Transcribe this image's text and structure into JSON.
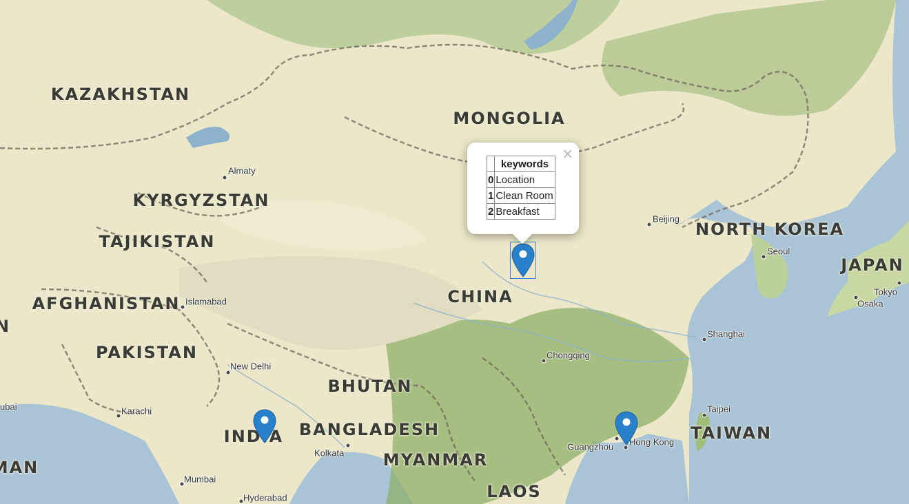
{
  "map": {
    "countries": [
      "KAZAKHSTAN",
      "MONGOLIA",
      "KYRGYZSTAN",
      "TAJIKISTAN",
      "AFGHANISTAN",
      "CHINA",
      "PAKISTAN",
      "NORTH KOREA",
      "JAPAN",
      "BHUTAN",
      "BANGLADESH",
      "MYANMAR",
      "INDIA",
      "TAIWAN",
      "LAOS",
      "N",
      "MAN"
    ],
    "cities": [
      "Almaty",
      "Beijing",
      "Seoul",
      "Tokyo",
      "Osaka",
      "Islamabad",
      "Shanghai",
      "Chongqing",
      "New Delhi",
      "Karachi",
      "Taipei",
      "Guangzhou",
      "Hong Kong",
      "Kolkata",
      "Mumbai",
      "Hyderabad",
      "ubai"
    ]
  },
  "markers": [
    "marker-icon",
    "marker-icon",
    "marker-icon"
  ],
  "popup": {
    "header_index": "",
    "header": "keywords",
    "rows": [
      {
        "index": "0",
        "value": "Location"
      },
      {
        "index": "1",
        "value": "Clean Room"
      },
      {
        "index": "2",
        "value": "Breakfast"
      }
    ],
    "close_label": "×"
  },
  "colors": {
    "water": "#a9c4d6",
    "land": "#e9e6c8",
    "forest": "#8fb06b",
    "marker": "#2a81cb"
  }
}
